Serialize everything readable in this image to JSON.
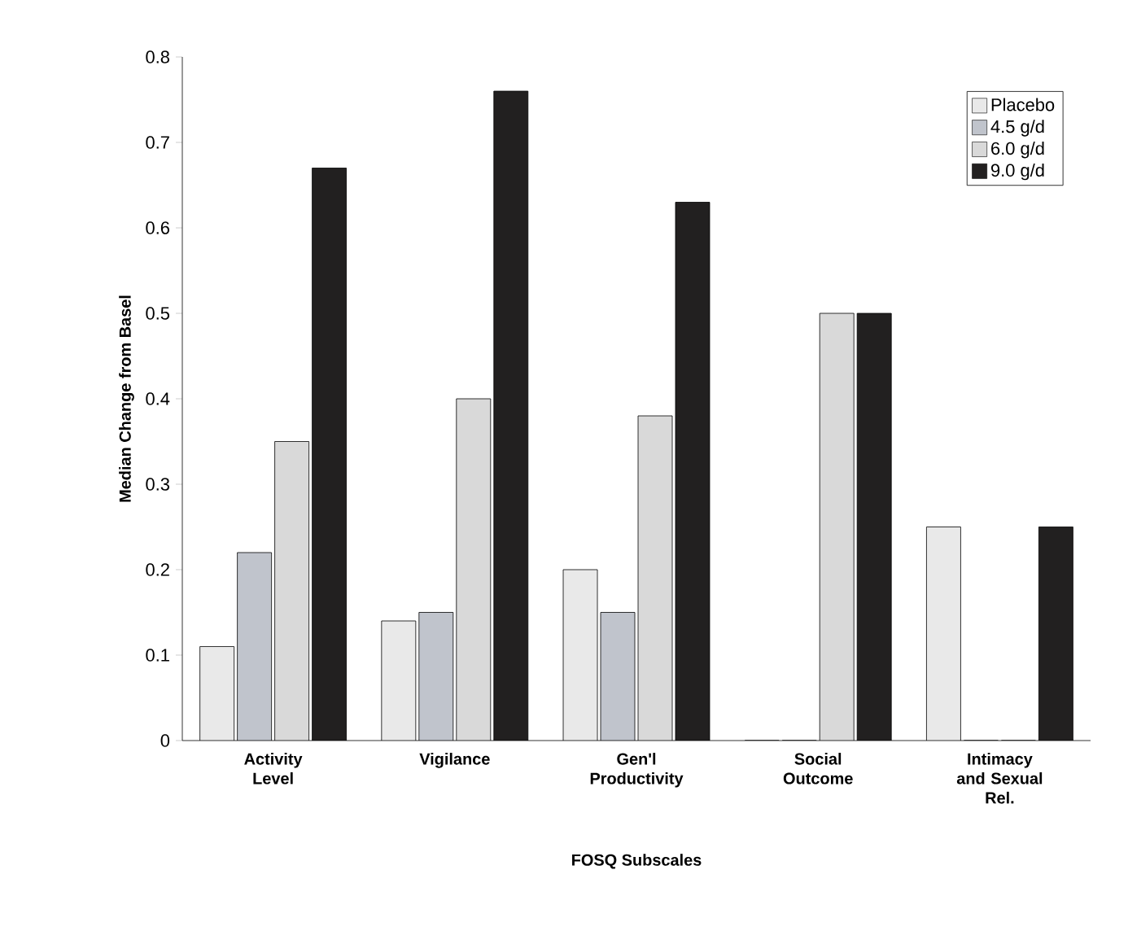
{
  "chart_data": {
    "type": "bar",
    "xlabel": "FOSQ Subscales",
    "ylabel": "Median Change from Basel",
    "categories": [
      "Activity Level",
      "Vigilance",
      "Gen'l Productivity",
      "Social Outcome",
      "Intimacy and Sexual Rel."
    ],
    "series": [
      {
        "name": "Placebo",
        "color": "#e9e9e9",
        "values": [
          0.11,
          0.14,
          0.2,
          0,
          0.25
        ]
      },
      {
        "name": "4.5 g/d",
        "color": "#c0c4cc",
        "values": [
          0.22,
          0.15,
          0.15,
          0,
          0
        ]
      },
      {
        "name": "6.0 g/d",
        "color": "#d9d9d9",
        "values": [
          0.35,
          0.4,
          0.38,
          0.5,
          0
        ]
      },
      {
        "name": "9.0 g/d",
        "color": "#222020",
        "values": [
          0.67,
          0.76,
          0.63,
          0.5,
          0.25
        ]
      }
    ],
    "ylim": [
      0,
      0.8
    ],
    "yticks": [
      0,
      0.1,
      0.2,
      0.3,
      0.4,
      0.5,
      0.6,
      0.7,
      0.8
    ],
    "grid": false,
    "legend": "top right"
  }
}
